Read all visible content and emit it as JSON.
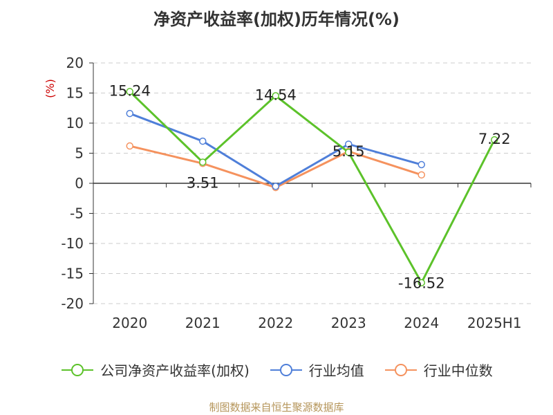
{
  "title": "净资产收益率(加权)历年情况(%)",
  "source": "制图数据来自恒生聚源数据库",
  "chart_data": {
    "type": "line",
    "categories": [
      "2020",
      "2021",
      "2022",
      "2023",
      "2024",
      "2025H1"
    ],
    "ylabel": "(%)",
    "ylim": [
      -20,
      20
    ],
    "yticks": [
      20,
      15,
      10,
      5,
      0,
      -5,
      -10,
      -15,
      -20
    ],
    "grid": true,
    "legend_position": "bottom",
    "series": [
      {
        "name": "公司净资产收益率(加权)",
        "color": "#5cc22a",
        "values": [
          15.24,
          3.51,
          14.54,
          5.15,
          -16.52,
          7.22
        ],
        "labels": [
          "15.24",
          "3.51",
          "14.54",
          "5.15",
          "-16.52",
          "7.22"
        ],
        "show_markers": [
          true,
          true,
          true,
          true,
          true,
          true
        ]
      },
      {
        "name": "行业均值",
        "color": "#4f7fd9",
        "values": [
          11.6,
          7.0,
          -0.5,
          6.5,
          3.1,
          null
        ]
      },
      {
        "name": "行业中位数",
        "color": "#f5925e",
        "values": [
          6.2,
          3.3,
          -0.7,
          5.3,
          1.4,
          null
        ]
      }
    ]
  }
}
